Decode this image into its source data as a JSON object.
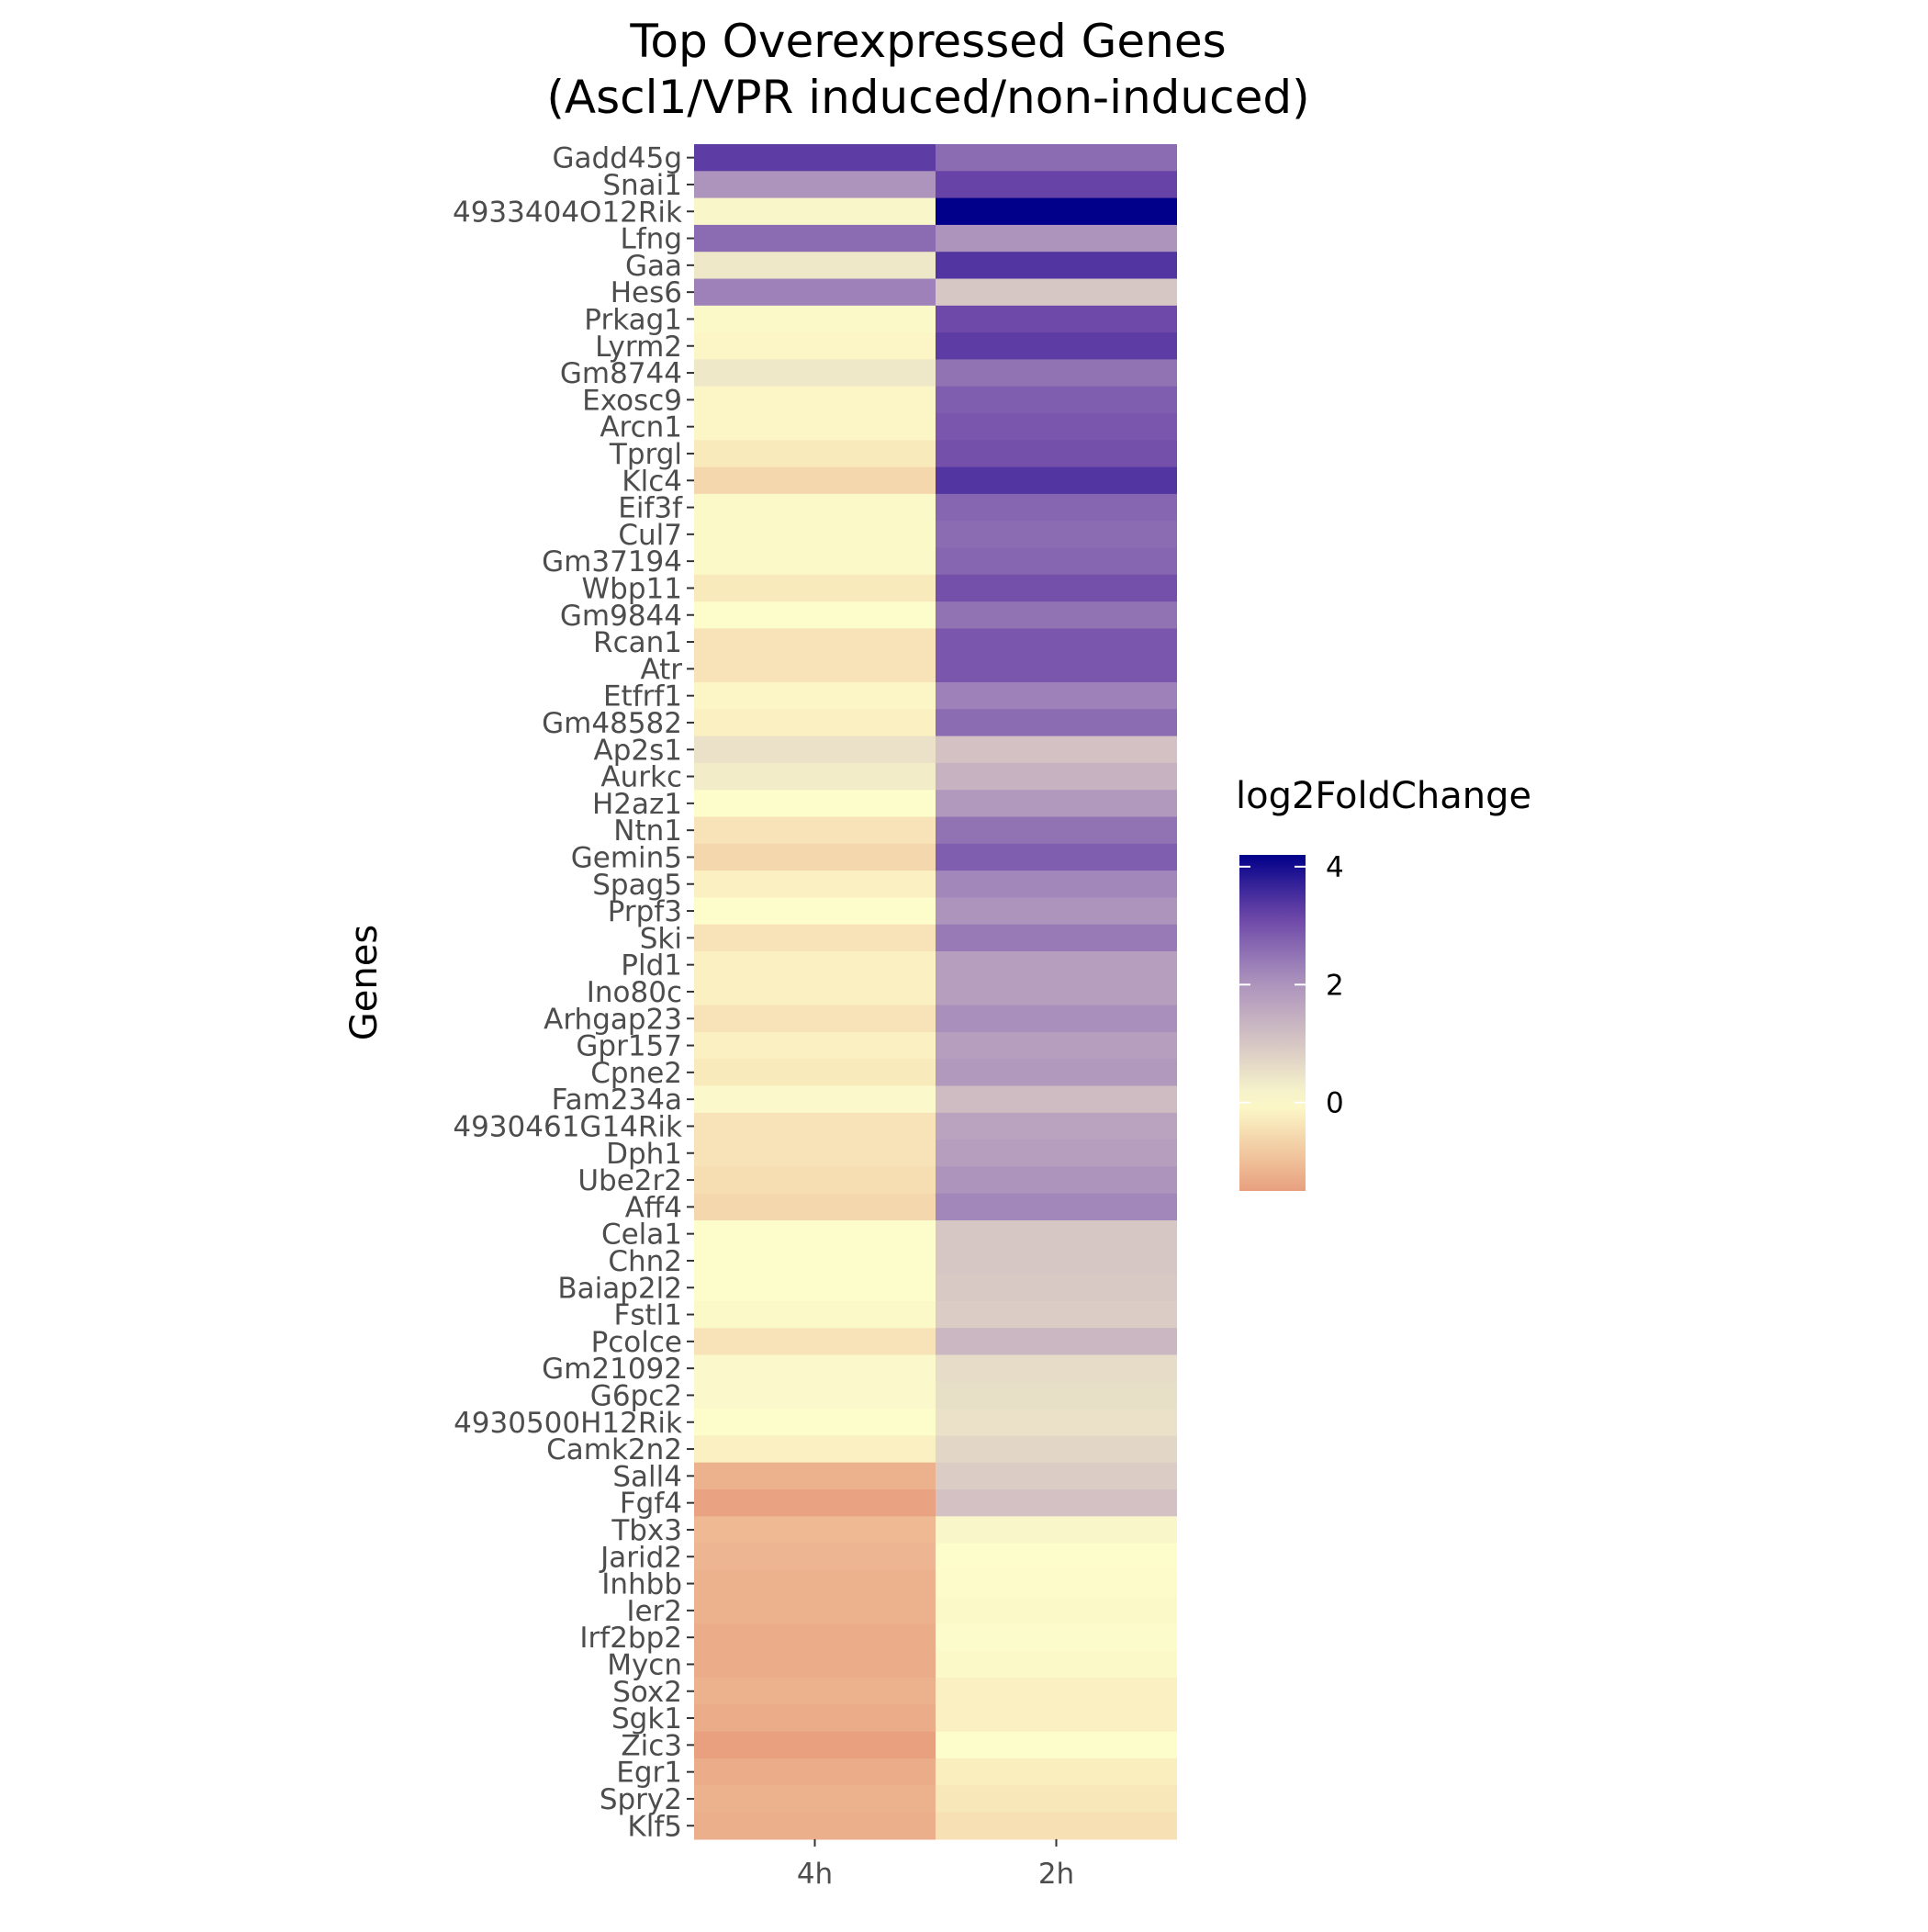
{
  "chart_data": {
    "type": "heatmap",
    "title": "Top Overexpressed Genes",
    "subtitle": "(Ascl1/VPR induced/non-induced)",
    "xlabel": "",
    "ylabel": "Genes",
    "columns": [
      "4h",
      "2h"
    ],
    "rows": [
      "Gadd45g",
      "Snai1",
      "4933404O12Rik",
      "Lfng",
      "Gaa",
      "Hes6",
      "Prkag1",
      "Lyrm2",
      "Gm8744",
      "Exosc9",
      "Arcn1",
      "Tprgl",
      "Klc4",
      "Eif3f",
      "Cul7",
      "Gm37194",
      "Wbp11",
      "Gm9844",
      "Rcan1",
      "Atr",
      "Etfrf1",
      "Gm48582",
      "Ap2s1",
      "Aurkc",
      "H2az1",
      "Ntn1",
      "Gemin5",
      "Spag5",
      "Prpf3",
      "Ski",
      "Pld1",
      "Ino80c",
      "Arhgap23",
      "Gpr157",
      "Cpne2",
      "Fam234a",
      "4930461G14Rik",
      "Dph1",
      "Ube2r2",
      "Aff4",
      "Cela1",
      "Chn2",
      "Baiap2l2",
      "Fstl1",
      "Pcolce",
      "Gm21092",
      "G6pc2",
      "4930500H12Rik",
      "Camk2n2",
      "Sall4",
      "Fgf4",
      "Tbx3",
      "Jarid2",
      "Inhbb",
      "Ier2",
      "Irf2bp2",
      "Mycn",
      "Sox2",
      "Sgk1",
      "Zic3",
      "Egr1",
      "Spry2",
      "Klf5"
    ],
    "values": [
      [
        3.3,
        2.6
      ],
      [
        2.0,
        3.2
      ],
      [
        0.1,
        4.2
      ],
      [
        2.6,
        2.0
      ],
      [
        0.4,
        3.4
      ],
      [
        2.3,
        1.0
      ],
      [
        -0.05,
        3.1
      ],
      [
        -0.1,
        3.3
      ],
      [
        0.4,
        2.5
      ],
      [
        -0.1,
        2.8
      ],
      [
        -0.1,
        2.9
      ],
      [
        -0.3,
        3.0
      ],
      [
        -0.6,
        3.4
      ],
      [
        -0.05,
        2.7
      ],
      [
        -0.05,
        2.6
      ],
      [
        -0.05,
        2.7
      ],
      [
        -0.3,
        3.0
      ],
      [
        0.0,
        2.5
      ],
      [
        -0.4,
        2.9
      ],
      [
        -0.4,
        2.9
      ],
      [
        -0.1,
        2.3
      ],
      [
        -0.2,
        2.6
      ],
      [
        0.5,
        1.1
      ],
      [
        0.3,
        1.4
      ],
      [
        0.0,
        1.9
      ],
      [
        -0.4,
        2.5
      ],
      [
        -0.6,
        2.8
      ],
      [
        -0.2,
        2.2
      ],
      [
        0.0,
        2.0
      ],
      [
        -0.4,
        2.4
      ],
      [
        -0.2,
        1.8
      ],
      [
        -0.2,
        1.8
      ],
      [
        -0.4,
        2.1
      ],
      [
        -0.2,
        1.8
      ],
      [
        -0.3,
        1.9
      ],
      [
        0.05,
        1.2
      ],
      [
        -0.4,
        1.7
      ],
      [
        -0.4,
        1.8
      ],
      [
        -0.5,
        2.0
      ],
      [
        -0.6,
        2.2
      ],
      [
        0.0,
        1.0
      ],
      [
        0.0,
        1.0
      ],
      [
        0.0,
        0.95
      ],
      [
        -0.05,
        0.9
      ],
      [
        -0.4,
        1.3
      ],
      [
        0.05,
        0.6
      ],
      [
        0.05,
        0.55
      ],
      [
        0.0,
        0.5
      ],
      [
        -0.2,
        0.7
      ],
      [
        -1.2,
        0.9
      ],
      [
        -1.45,
        1.1
      ],
      [
        -1.1,
        0.1
      ],
      [
        -1.15,
        0.0
      ],
      [
        -1.2,
        -0.02
      ],
      [
        -1.2,
        -0.05
      ],
      [
        -1.3,
        0.02
      ],
      [
        -1.3,
        -0.05
      ],
      [
        -1.2,
        -0.2
      ],
      [
        -1.3,
        -0.2
      ],
      [
        -1.5,
        0.0
      ],
      [
        -1.3,
        -0.25
      ],
      [
        -1.2,
        -0.35
      ],
      [
        -1.25,
        -0.45
      ]
    ],
    "color_scale": {
      "low": "#e8a07f",
      "mid": "#fdfccb",
      "high": "#01008a",
      "domain_min": -1.5,
      "domain_max": 4.2
    },
    "legend": {
      "title": "log2FoldChange",
      "ticks": [
        0,
        2,
        4
      ],
      "tick_labels": [
        "0",
        "2",
        "4"
      ],
      "position": "right"
    }
  }
}
